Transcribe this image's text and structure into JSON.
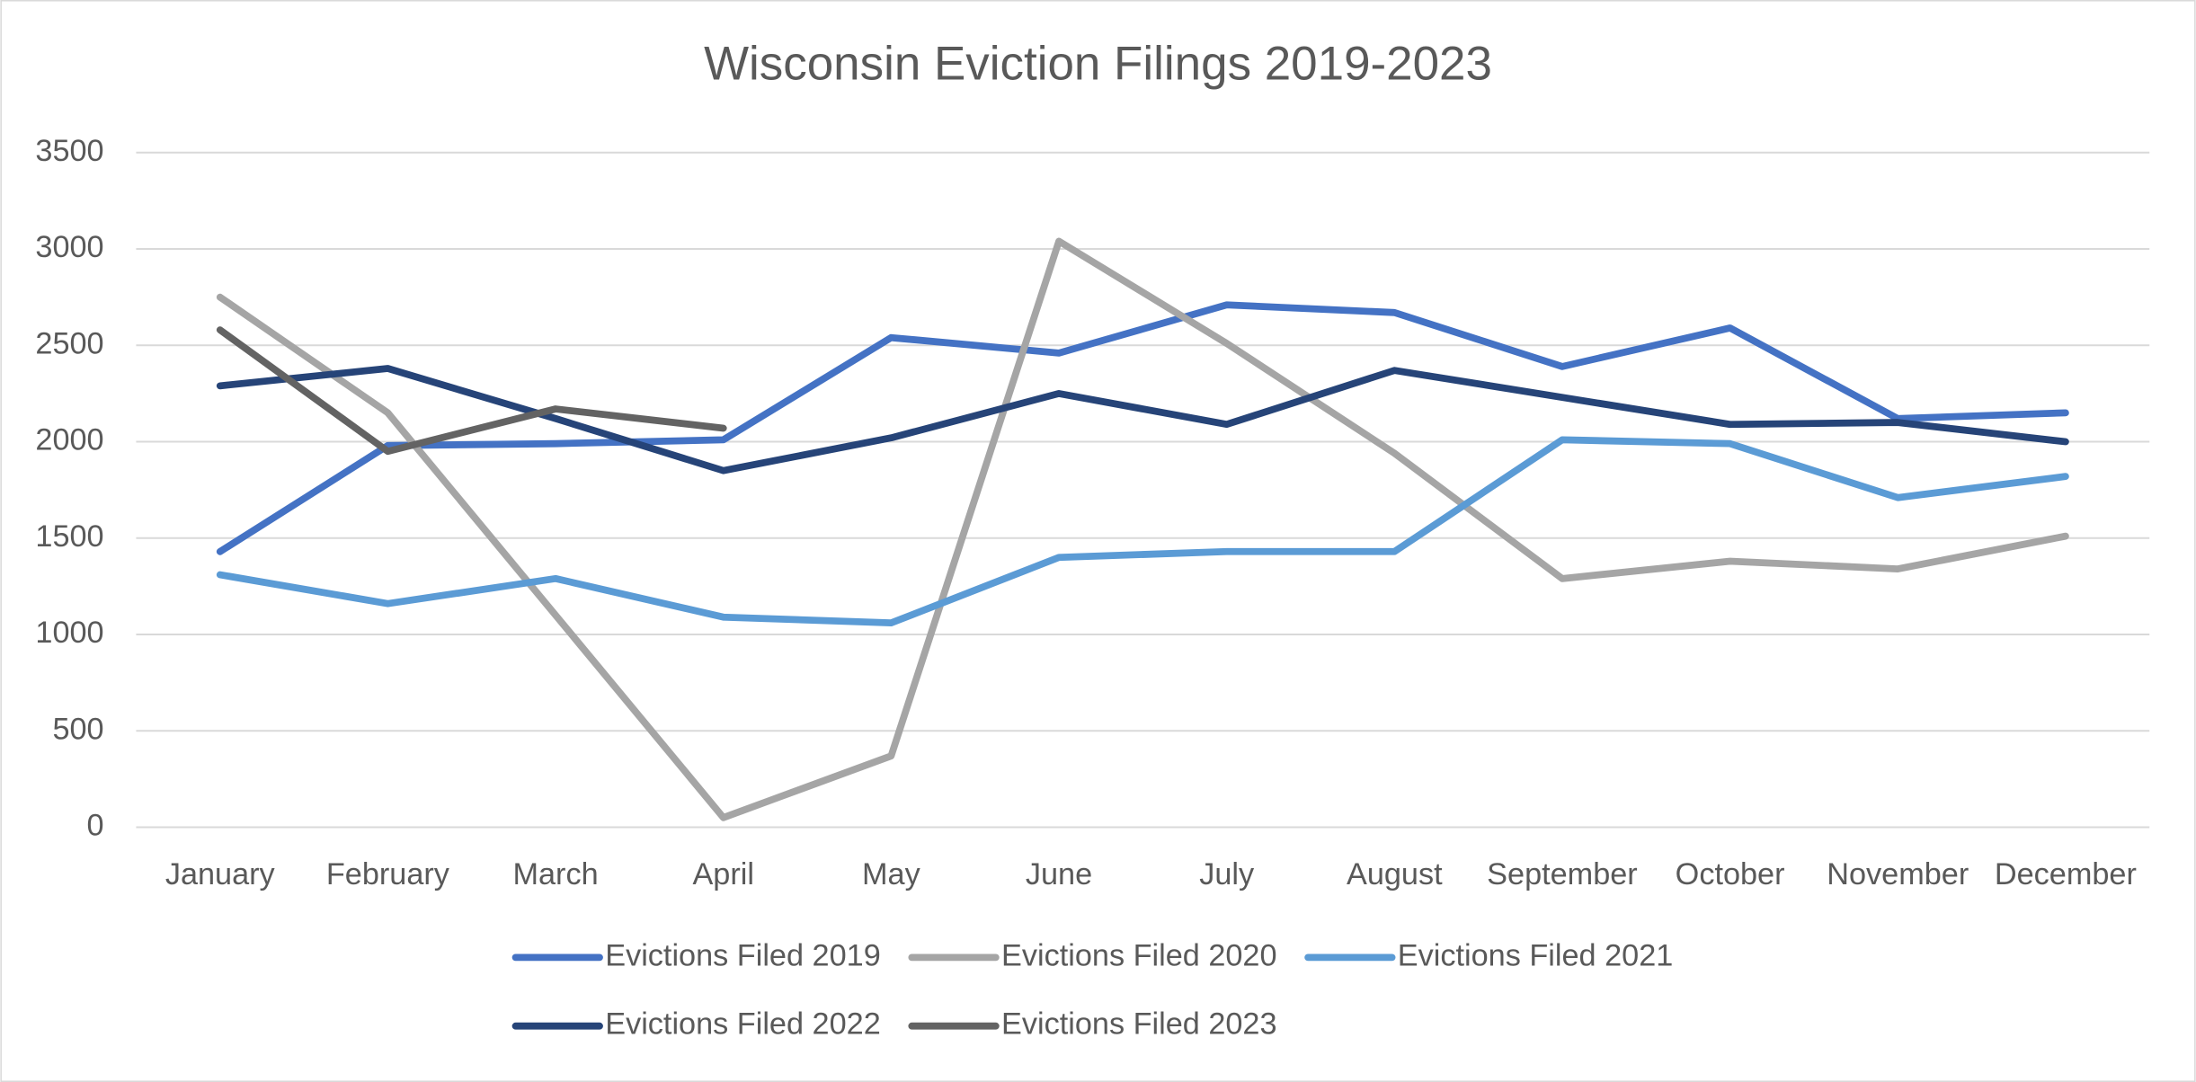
{
  "chart_data": {
    "type": "line",
    "title": "Wisconsin Eviction Filings 2019-2023",
    "categories": [
      "January",
      "February",
      "March",
      "April",
      "May",
      "June",
      "July",
      "August",
      "September",
      "October",
      "November",
      "December"
    ],
    "series": [
      {
        "name": "Evictions Filed 2019",
        "color": "#4472c4",
        "values": [
          1430,
          1980,
          1990,
          2010,
          2540,
          2460,
          2710,
          2670,
          2390,
          2590,
          2120,
          2150
        ]
      },
      {
        "name": "Evictions Filed 2020",
        "color": "#a5a5a5",
        "values": [
          2750,
          2150,
          1100,
          50,
          370,
          3040,
          2510,
          1940,
          1290,
          1380,
          1340,
          1510
        ]
      },
      {
        "name": "Evictions Filed 2021",
        "color": "#5b9bd5",
        "values": [
          1310,
          1160,
          1290,
          1090,
          1060,
          1400,
          1430,
          1430,
          2010,
          1990,
          1710,
          1820
        ]
      },
      {
        "name": "Evictions Filed 2022",
        "color": "#264478",
        "values": [
          2290,
          2380,
          2120,
          1850,
          2020,
          2250,
          2090,
          2370,
          2230,
          2090,
          2100,
          2000
        ]
      },
      {
        "name": "Evictions Filed 2023",
        "color": "#636363",
        "values": [
          2580,
          1950,
          2170,
          2070,
          null,
          null,
          null,
          null,
          null,
          null,
          null,
          null
        ]
      }
    ],
    "ylim": [
      0,
      3500
    ],
    "yticks": [
      0,
      500,
      1000,
      1500,
      2000,
      2500,
      3000,
      3500
    ],
    "grid": true,
    "legend": "bottom"
  }
}
